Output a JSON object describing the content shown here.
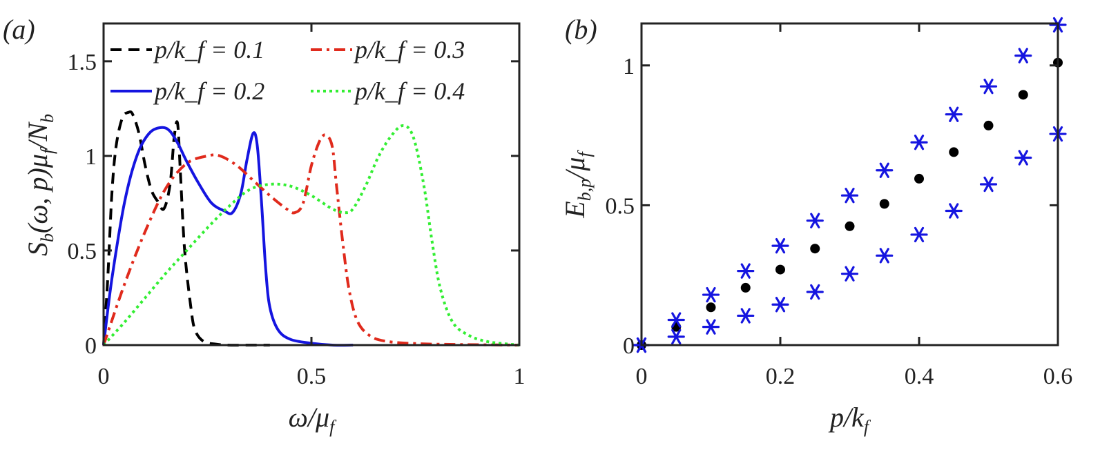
{
  "chart_data": [
    {
      "type": "line",
      "panel_label": "(a)",
      "xlabel": "ω/μ_f",
      "ylabel": "S_b(ω,p)μ_f/N_b",
      "xlim": [
        0,
        1
      ],
      "ylim": [
        0,
        1.7
      ],
      "xticks": [
        0,
        0.5,
        1
      ],
      "xtick_labels": [
        "0",
        "0.5",
        "1"
      ],
      "yticks": [
        0,
        0.5,
        1,
        1.5
      ],
      "ytick_labels": [
        "0",
        "0.5",
        "1",
        "1.5"
      ],
      "grid": false,
      "legend_position": "top",
      "series": [
        {
          "name": "p/k_f = 0.1",
          "color": "#000000",
          "style": "dashed",
          "x": [
            0,
            0.01,
            0.02,
            0.03,
            0.045,
            0.06,
            0.07,
            0.085,
            0.1,
            0.115,
            0.13,
            0.145,
            0.16,
            0.17,
            0.178,
            0.185,
            0.195,
            0.21,
            0.22,
            0.24,
            0.27,
            0.3,
            0.35,
            0.4
          ],
          "y": [
            0,
            0.35,
            0.8,
            1.05,
            1.2,
            1.23,
            1.22,
            1.12,
            0.95,
            0.82,
            0.76,
            0.72,
            0.85,
            1.1,
            1.17,
            0.9,
            0.5,
            0.2,
            0.08,
            0.02,
            0.005,
            0,
            0,
            0
          ]
        },
        {
          "name": "p/k_f = 0.2",
          "color": "#1515e0",
          "style": "solid",
          "x": [
            0,
            0.02,
            0.05,
            0.08,
            0.11,
            0.14,
            0.16,
            0.18,
            0.2,
            0.23,
            0.26,
            0.29,
            0.31,
            0.33,
            0.345,
            0.36,
            0.37,
            0.38,
            0.39,
            0.4,
            0.42,
            0.45,
            0.5,
            0.55,
            0.6
          ],
          "y": [
            0,
            0.35,
            0.75,
            1.0,
            1.12,
            1.15,
            1.13,
            1.06,
            0.97,
            0.85,
            0.75,
            0.71,
            0.7,
            0.8,
            0.98,
            1.12,
            1.05,
            0.75,
            0.4,
            0.2,
            0.08,
            0.03,
            0.01,
            0,
            0
          ]
        },
        {
          "name": "p/k_f = 0.3",
          "color": "#e02a1c",
          "style": "dashdot",
          "x": [
            0,
            0.05,
            0.1,
            0.15,
            0.2,
            0.25,
            0.28,
            0.32,
            0.36,
            0.4,
            0.44,
            0.46,
            0.48,
            0.5,
            0.52,
            0.535,
            0.55,
            0.56,
            0.575,
            0.59,
            0.61,
            0.64,
            0.68,
            0.75,
            0.85,
            1.0
          ],
          "y": [
            0,
            0.32,
            0.6,
            0.83,
            0.96,
            1.0,
            1.0,
            0.95,
            0.87,
            0.79,
            0.72,
            0.7,
            0.75,
            0.95,
            1.08,
            1.11,
            1.05,
            0.85,
            0.55,
            0.3,
            0.13,
            0.05,
            0.02,
            0.008,
            0.003,
            0
          ]
        },
        {
          "name": "p/k_f = 0.4",
          "color": "#33ee33",
          "style": "dotted",
          "x": [
            0,
            0.05,
            0.1,
            0.15,
            0.2,
            0.25,
            0.3,
            0.35,
            0.4,
            0.45,
            0.5,
            0.55,
            0.58,
            0.6,
            0.63,
            0.66,
            0.69,
            0.72,
            0.745,
            0.77,
            0.79,
            0.81,
            0.84,
            0.88,
            0.92,
            0.96,
            1.0
          ],
          "y": [
            0,
            0.12,
            0.25,
            0.38,
            0.5,
            0.62,
            0.73,
            0.82,
            0.85,
            0.84,
            0.79,
            0.72,
            0.7,
            0.72,
            0.84,
            0.99,
            1.1,
            1.16,
            1.1,
            0.85,
            0.55,
            0.3,
            0.12,
            0.05,
            0.02,
            0.008,
            0
          ]
        }
      ]
    },
    {
      "type": "scatter",
      "panel_label": "(b)",
      "xlabel": "p/k_f",
      "ylabel": "E_b,p/μ_f",
      "xlim": [
        0,
        0.6
      ],
      "ylim": [
        0,
        1.15
      ],
      "xticks": [
        0,
        0.2,
        0.4,
        0.6
      ],
      "xtick_labels": [
        "0",
        "0.2",
        "0.4",
        "0.6"
      ],
      "yticks": [
        0,
        0.5,
        1
      ],
      "ytick_labels": [
        "0",
        "0.5",
        "1"
      ],
      "grid": false,
      "series": [
        {
          "name": "dots",
          "marker": "circle",
          "color": "#000000",
          "x": [
            0,
            0.05,
            0.1,
            0.15,
            0.2,
            0.25,
            0.3,
            0.35,
            0.4,
            0.45,
            0.5,
            0.55,
            0.6
          ],
          "y": [
            0,
            0.065,
            0.135,
            0.205,
            0.27,
            0.345,
            0.425,
            0.505,
            0.595,
            0.69,
            0.785,
            0.895,
            1.01
          ]
        },
        {
          "name": "stars upper",
          "marker": "asterisk",
          "color": "#1515e0",
          "x": [
            0,
            0.05,
            0.1,
            0.15,
            0.2,
            0.25,
            0.3,
            0.35,
            0.4,
            0.45,
            0.5,
            0.55,
            0.6
          ],
          "y": [
            0,
            0.09,
            0.18,
            0.265,
            0.355,
            0.445,
            0.535,
            0.625,
            0.725,
            0.825,
            0.925,
            1.035,
            1.145
          ]
        },
        {
          "name": "stars lower",
          "marker": "asterisk",
          "color": "#1515e0",
          "x": [
            0,
            0.05,
            0.1,
            0.15,
            0.2,
            0.25,
            0.3,
            0.35,
            0.4,
            0.45,
            0.5,
            0.55,
            0.6
          ],
          "y": [
            0,
            0.03,
            0.065,
            0.105,
            0.145,
            0.19,
            0.255,
            0.32,
            0.395,
            0.48,
            0.575,
            0.67,
            0.755
          ]
        }
      ]
    }
  ]
}
